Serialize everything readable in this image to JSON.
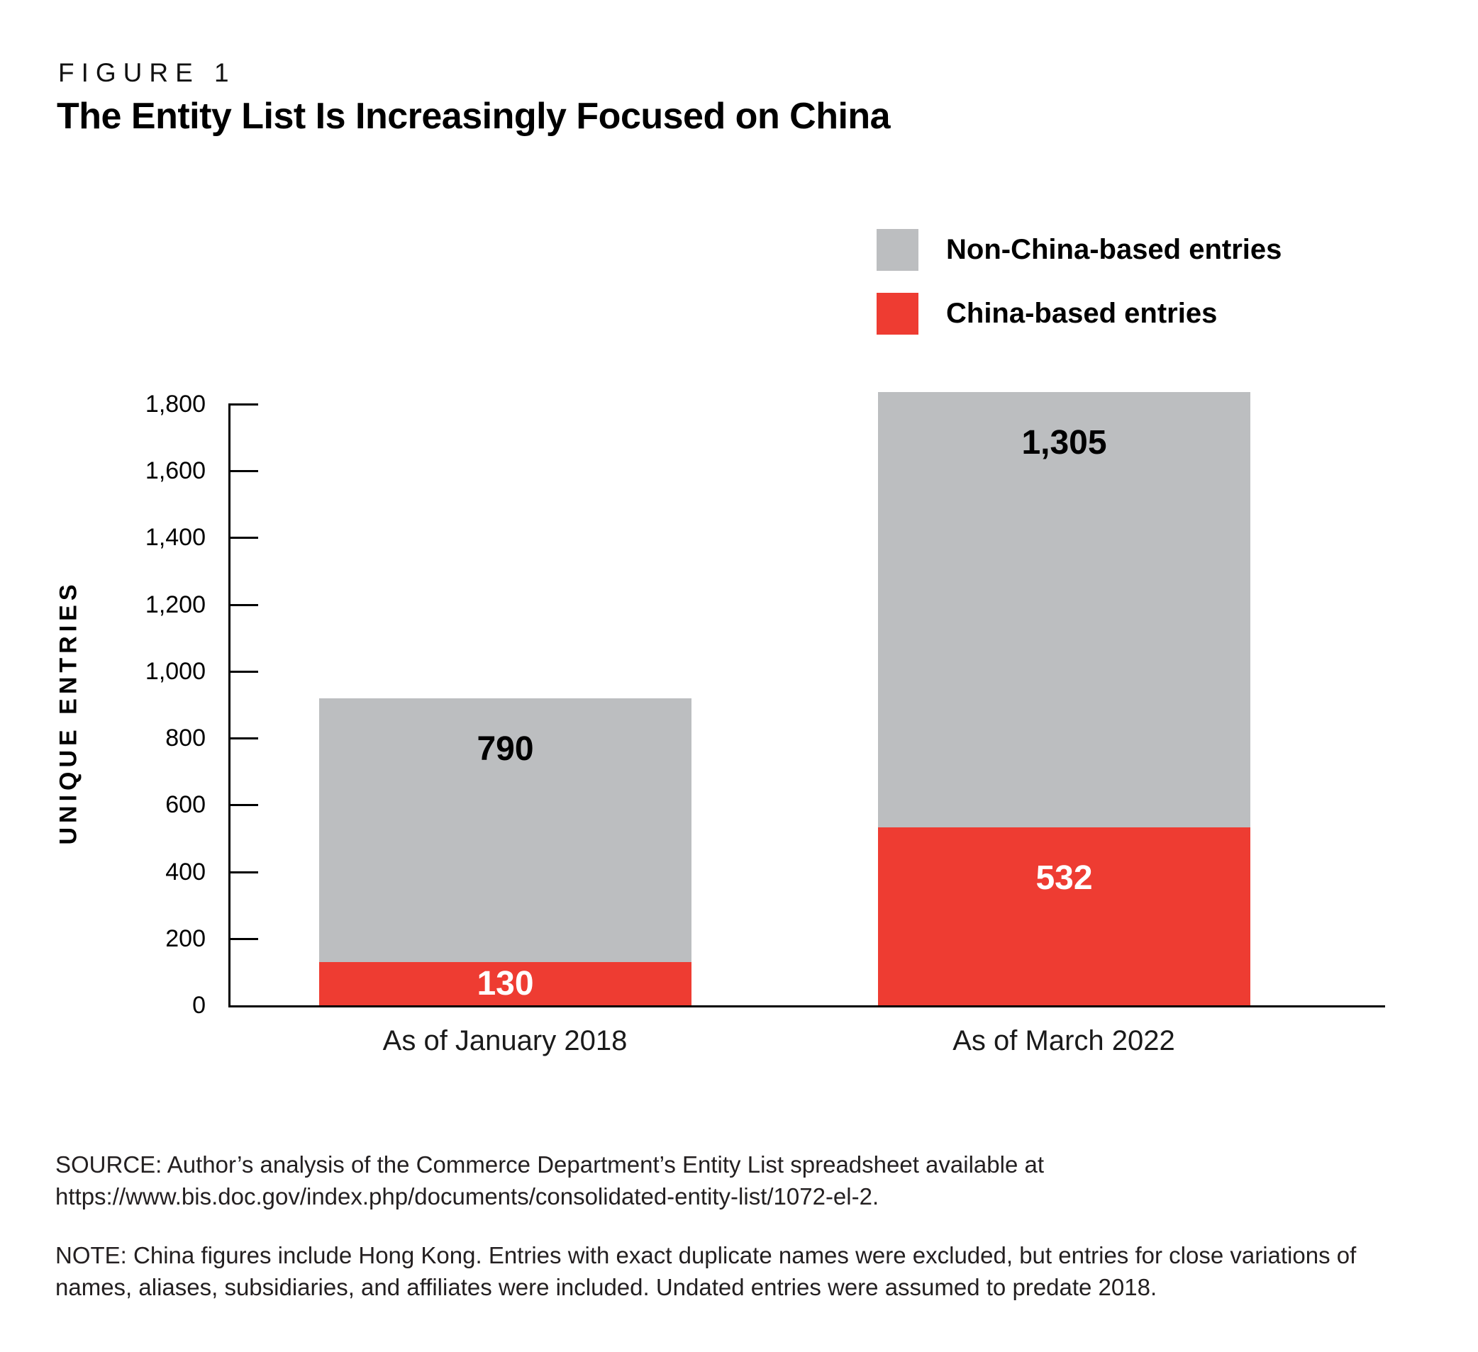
{
  "figure": {
    "label": "FIGURE 1",
    "title": "The Entity List Is Increasingly Focused on China"
  },
  "chart_data": {
    "type": "bar",
    "stacked": true,
    "title": "The Entity List Is Increasingly Focused on China",
    "categories": [
      "As of January 2018",
      "As of March 2022"
    ],
    "series": [
      {
        "name": "China-based entries",
        "color": "#ee3c32",
        "label_color": "#ffffff",
        "values": [
          130,
          532
        ],
        "value_labels": [
          "130",
          "532"
        ]
      },
      {
        "name": "Non-China-based entries",
        "color": "#bcbec0",
        "label_color": "#000000",
        "values": [
          790,
          1305
        ],
        "value_labels": [
          "790",
          "1,305"
        ]
      }
    ],
    "xlabel": "",
    "ylabel": "UNIQUE ENTRIES",
    "ylim": [
      0,
      1800
    ],
    "yticks": [
      0,
      200,
      400,
      600,
      800,
      1000,
      1200,
      1400,
      1600,
      1800
    ],
    "ytick_labels": [
      "0",
      "200",
      "400",
      "600",
      "800",
      "1,000",
      "1,200",
      "1,400",
      "1,600",
      "1,800"
    ],
    "grid": false,
    "legend_position": "top-right"
  },
  "footer": {
    "source": "SOURCE: Author’s analysis of the Commerce Department’s Entity List spreadsheet available at https://www.bis.doc.gov/index.php/documents/consolidated-entity-list/1072-el-2.",
    "note": "NOTE: China figures include Hong Kong. Entries with exact duplicate names were excluded, but entries for close variations of names, aliases, subsidiaries, and affiliates were included. Undated entries were assumed to predate 2018."
  }
}
